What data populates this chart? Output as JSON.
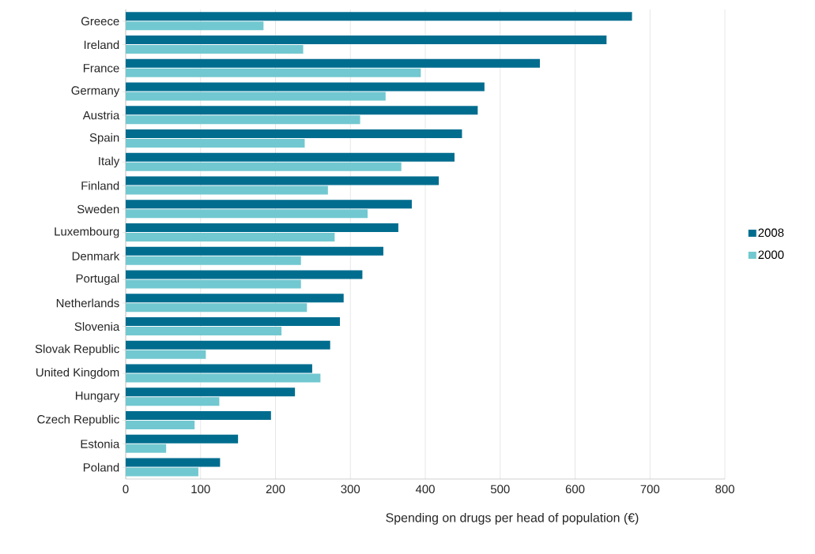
{
  "chart_data": {
    "type": "bar",
    "orientation": "horizontal",
    "xlabel": "Spending on drugs per head of population (€)",
    "categories": [
      "Greece",
      "Ireland",
      "France",
      "Germany",
      "Austria",
      "Spain",
      "Italy",
      "Finland",
      "Sweden",
      "Luxembourg",
      "Denmark",
      "Portugal",
      "Netherlands",
      "Slovenia",
      "Slovak Republic",
      "United Kingdom",
      "Hungary",
      "Czech Republic",
      "Estonia",
      "Poland"
    ],
    "series": [
      {
        "name": "2008",
        "color": "#006d8f",
        "values": [
          676,
          642,
          553,
          479,
          470,
          449,
          439,
          418,
          382,
          364,
          344,
          316,
          291,
          286,
          273,
          249,
          226,
          194,
          150,
          126
        ]
      },
      {
        "name": "2000",
        "color": "#72c8d0",
        "values": [
          184,
          237,
          394,
          347,
          313,
          239,
          368,
          270,
          323,
          279,
          234,
          234,
          242,
          208,
          107,
          260,
          125,
          92,
          54,
          97
        ]
      }
    ],
    "xlim": [
      0,
      800
    ],
    "xticks": [
      0,
      100,
      200,
      300,
      400,
      500,
      600,
      700,
      800
    ],
    "grid": "x",
    "legend": "right"
  }
}
